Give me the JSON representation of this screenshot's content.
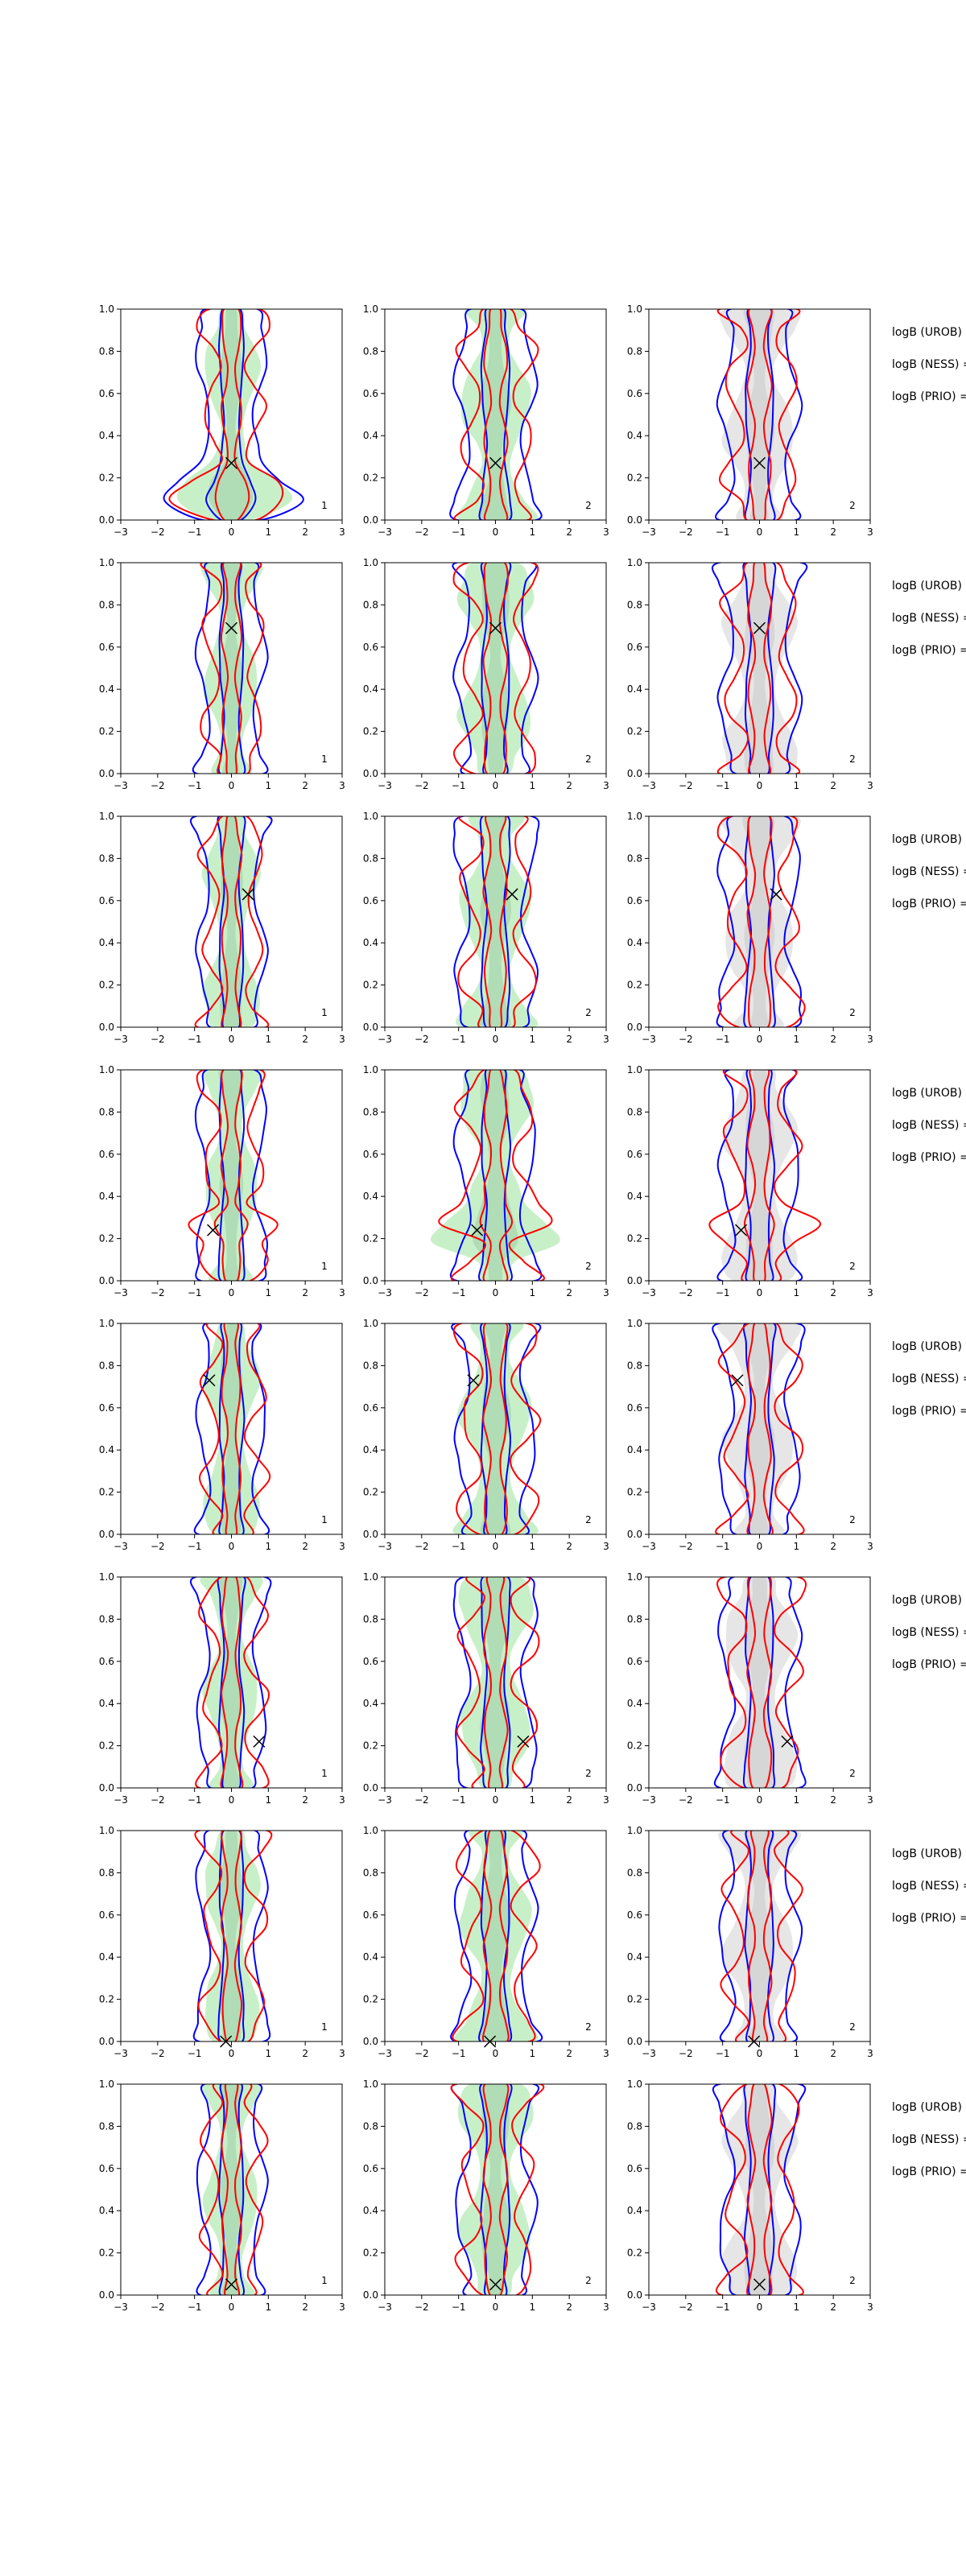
{
  "chart_data": {
    "type": "contour",
    "grid": {
      "rows": 8,
      "cols": 3
    },
    "xlim": [
      -3,
      3
    ],
    "ylim": [
      0.0,
      1.0
    ],
    "x_ticks": [
      "−3",
      "−2",
      "−1",
      "0",
      "1",
      "2",
      "3"
    ],
    "y_ticks": [
      "0.0",
      "0.2",
      "0.4",
      "0.6",
      "0.8",
      "1.0"
    ],
    "column_corner_labels": [
      "1",
      "2",
      "2"
    ],
    "row_side_labels": [
      "logB (UROB) =",
      "logB (NESS) =",
      "logB (PRIO) ="
    ],
    "contour_colors": {
      "outer": "#0000ff",
      "inner": "#ff0000",
      "fill": "#c8f0c8",
      "fill_alt": "#e6e6e6"
    },
    "markers": [
      {
        "x": 0.0,
        "y": 0.27
      },
      {
        "x": 0.0,
        "y": 0.69
      },
      {
        "x": 0.45,
        "y": 0.63
      },
      {
        "x": -0.5,
        "y": 0.24
      },
      {
        "x": -0.6,
        "y": 0.73
      },
      {
        "x": 0.75,
        "y": 0.22
      },
      {
        "x": -0.15,
        "y": 0.0
      },
      {
        "x": 0.0,
        "y": 0.05
      }
    ]
  }
}
